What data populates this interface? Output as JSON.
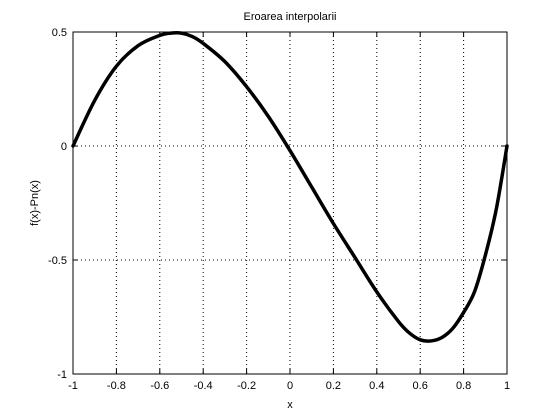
{
  "chart_data": {
    "type": "line",
    "title": "Eroarea interpolarii",
    "xlabel": "x",
    "ylabel": "f(x)-Pn(x)",
    "xlim": [
      -1,
      1
    ],
    "ylim": [
      -1,
      0.5
    ],
    "xticks": [
      -1,
      -0.8,
      -0.6,
      -0.4,
      -0.2,
      0,
      0.2,
      0.4,
      0.6,
      0.8,
      1
    ],
    "xtick_labels": [
      "-1",
      "-0.8",
      "-0.6",
      "-0.4",
      "-0.2",
      "0",
      "0.2",
      "0.4",
      "0.6",
      "0.8",
      "1"
    ],
    "yticks": [
      -1,
      -0.5,
      0,
      0.5
    ],
    "ytick_labels": [
      "-1",
      "-0.5",
      "0",
      "0.5"
    ],
    "grid": true,
    "series": [
      {
        "color": "#000000",
        "x": [
          -1,
          -0.9,
          -0.8,
          -0.7,
          -0.6,
          -0.55,
          -0.5,
          -0.45,
          -0.4,
          -0.3,
          -0.2,
          -0.1,
          0,
          0.1,
          0.2,
          0.3,
          0.4,
          0.5,
          0.55,
          0.6,
          0.65,
          0.7,
          0.75,
          0.8,
          0.85,
          0.9,
          0.95,
          1
        ],
        "y": [
          0,
          0.2,
          0.35,
          0.44,
          0.485,
          0.495,
          0.495,
          0.48,
          0.45,
          0.37,
          0.26,
          0.13,
          -0.02,
          -0.18,
          -0.34,
          -0.49,
          -0.64,
          -0.77,
          -0.82,
          -0.85,
          -0.855,
          -0.84,
          -0.8,
          -0.73,
          -0.64,
          -0.48,
          -0.28,
          0
        ]
      }
    ]
  }
}
